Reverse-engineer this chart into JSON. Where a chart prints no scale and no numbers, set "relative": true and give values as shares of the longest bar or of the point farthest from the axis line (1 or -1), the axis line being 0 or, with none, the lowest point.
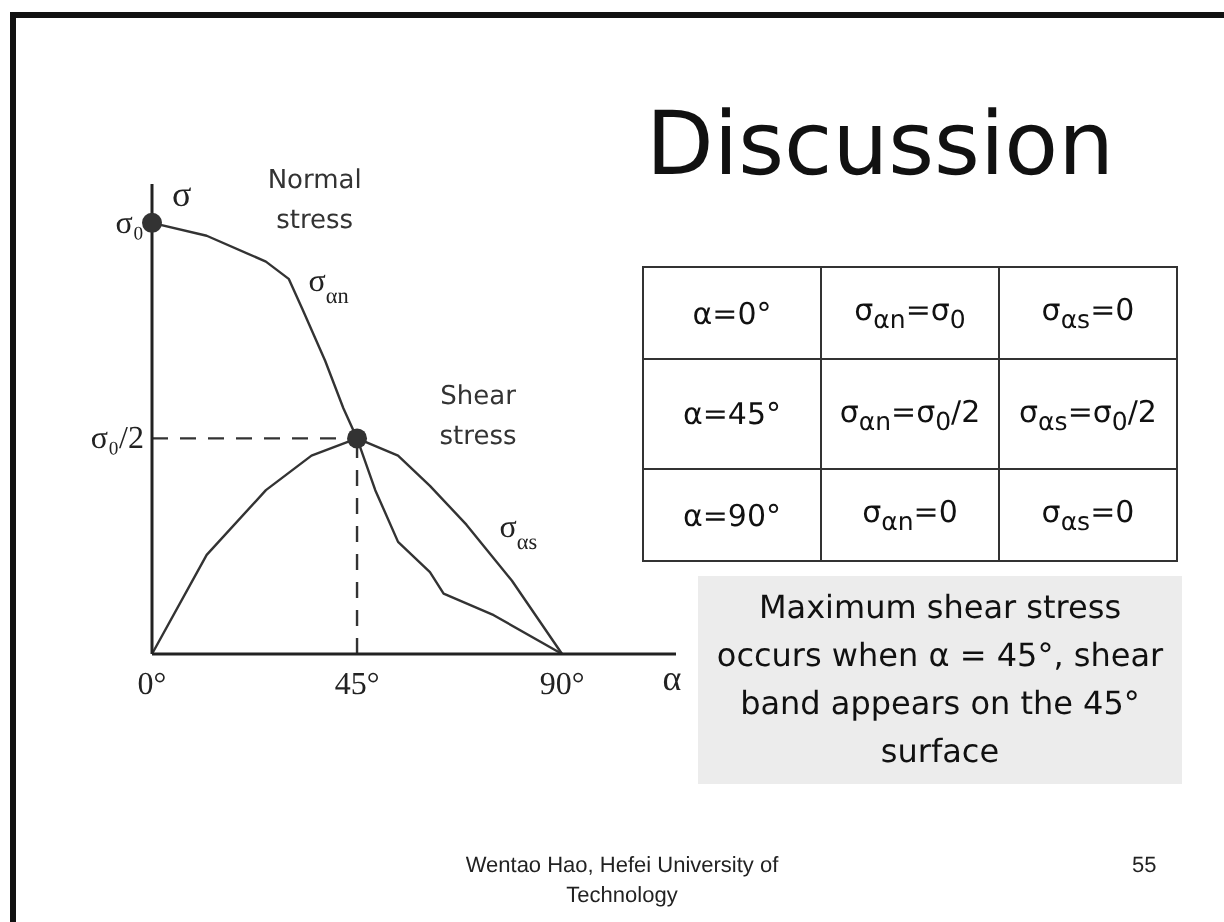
{
  "chart_data": [
    {
      "type": "line",
      "relative": true,
      "xlabel": "α",
      "ylabel": "σ",
      "xlim": [
        0,
        115
      ],
      "xticks": [
        {
          "value": 0,
          "label": "0°"
        },
        {
          "value": 45,
          "label": "45°"
        },
        {
          "value": 90,
          "label": "90°"
        }
      ],
      "series": [
        {
          "name": "Normal stress",
          "color": "#333333",
          "x": [
            0,
            12,
            25,
            30,
            33,
            38,
            42,
            45,
            49,
            54,
            61,
            64,
            75,
            90
          ],
          "values": [
            1,
            0.97,
            0.91,
            0.87,
            0.8,
            0.68,
            0.57,
            0.5,
            0.38,
            0.26,
            0.19,
            0.14,
            0.09,
            0
          ]
        },
        {
          "name": "Shear stress",
          "color": "#333333",
          "x": [
            0,
            12,
            25,
            35,
            45,
            54,
            61,
            69,
            79,
            90
          ],
          "values": [
            0,
            0.23,
            0.38,
            0.46,
            0.5,
            0.46,
            0.39,
            0.3,
            0.17,
            0
          ]
        },
        {
          "type": "scatter",
          "color": "#333333",
          "marker": "circle",
          "x": [
            0,
            45
          ],
          "values": [
            1,
            0.5
          ]
        }
      ],
      "ref_lines": [
        {
          "axis": "y",
          "value": 0.5,
          "line_style": "dashed",
          "color": "#333333"
        },
        {
          "axis": "x",
          "value": 45,
          "line_style": "dashed",
          "color": "#333333"
        }
      ],
      "annotations": [
        {
          "text": "σ₀",
          "x": 0,
          "y": 1
        },
        {
          "text": "σ₀/2",
          "x": 0,
          "y": 0.5
        },
        {
          "text": "σ$_{αn}$",
          "x": 30,
          "y": 0.87
        },
        {
          "text": "σ$_{αs}$",
          "x": 69,
          "y": 0.3
        }
      ]
    },
    {
      "type": "other",
      "title": "Discussion",
      "annotations": [
        "α=0°",
        "σ$_{αn}$=σ$_{0}$",
        "σ$_{αs}$=0",
        "α=45°",
        "σ$_{αn}$=σ$_{0}$/2",
        "σ$_{αs}$=σ$_{0}$/2",
        "α=90°",
        "σ$_{αn}$=0",
        "σ$_{αs}$=0",
        "Maximum shear stress occurs when α = 45°, shear band appears on the 45° surface",
        "Wentao Hao, Hefei University of Technology",
        "55"
      ]
    }
  ]
}
